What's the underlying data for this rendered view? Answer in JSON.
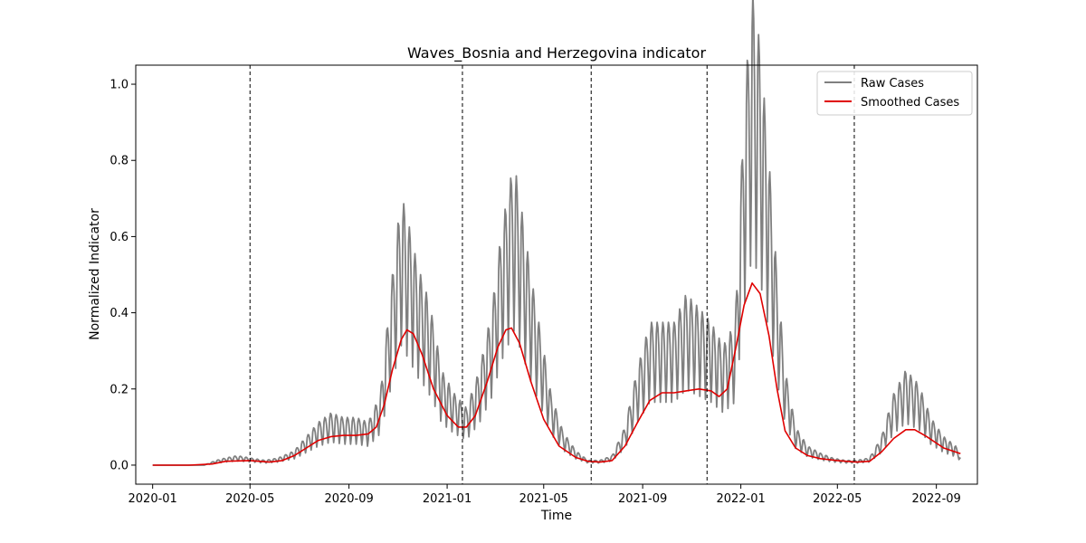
{
  "chart_data": {
    "type": "line",
    "title": "Waves_Bosnia and Herzegovina indicator",
    "xlabel": "Time",
    "ylabel": "Normalized Indicator",
    "x_range": [
      "2019-12-11",
      "2022-10-22"
    ],
    "ylim": [
      -0.05,
      1.05
    ],
    "x_ticks": [
      "2020-01",
      "2020-05",
      "2020-09",
      "2021-01",
      "2021-05",
      "2021-09",
      "2022-01",
      "2022-05",
      "2022-09"
    ],
    "y_ticks": [
      "0.0",
      "0.2",
      "0.4",
      "0.6",
      "0.8",
      "1.0"
    ],
    "grid": false,
    "legend_position": "top-right",
    "series": [
      {
        "name": "Raw Cases",
        "color": "#808080",
        "points": [
          [
            "2020-01-01",
            0.0
          ],
          [
            "2020-03-05",
            0.0
          ],
          [
            "2020-03-20",
            0.01
          ],
          [
            "2020-04-01",
            0.015
          ],
          [
            "2020-04-15",
            0.02
          ],
          [
            "2020-05-01",
            0.015
          ],
          [
            "2020-05-20",
            0.01
          ],
          [
            "2020-06-05",
            0.015
          ],
          [
            "2020-06-25",
            0.03
          ],
          [
            "2020-07-10",
            0.06
          ],
          [
            "2020-07-25",
            0.09
          ],
          [
            "2020-08-10",
            0.11
          ],
          [
            "2020-08-25",
            0.1
          ],
          [
            "2020-09-10",
            0.1
          ],
          [
            "2020-09-25",
            0.09
          ],
          [
            "2020-10-10",
            0.15
          ],
          [
            "2020-10-25",
            0.4
          ],
          [
            "2020-11-05",
            0.57
          ],
          [
            "2020-11-15",
            0.5
          ],
          [
            "2020-11-25",
            0.42
          ],
          [
            "2020-12-05",
            0.37
          ],
          [
            "2020-12-15",
            0.3
          ],
          [
            "2020-12-25",
            0.2
          ],
          [
            "2021-01-10",
            0.15
          ],
          [
            "2021-01-25",
            0.12
          ],
          [
            "2021-02-10",
            0.2
          ],
          [
            "2021-02-25",
            0.32
          ],
          [
            "2021-03-10",
            0.5
          ],
          [
            "2021-03-25",
            0.64
          ],
          [
            "2021-04-05",
            0.52
          ],
          [
            "2021-04-15",
            0.4
          ],
          [
            "2021-04-25",
            0.3
          ],
          [
            "2021-05-10",
            0.15
          ],
          [
            "2021-05-25",
            0.07
          ],
          [
            "2021-06-10",
            0.03
          ],
          [
            "2021-06-25",
            0.01
          ],
          [
            "2021-07-10",
            0.01
          ],
          [
            "2021-07-25",
            0.02
          ],
          [
            "2021-08-10",
            0.08
          ],
          [
            "2021-08-25",
            0.2
          ],
          [
            "2021-09-10",
            0.3
          ],
          [
            "2021-09-25",
            0.3
          ],
          [
            "2021-10-10",
            0.3
          ],
          [
            "2021-10-25",
            0.36
          ],
          [
            "2021-11-10",
            0.33
          ],
          [
            "2021-11-25",
            0.3
          ],
          [
            "2021-12-10",
            0.25
          ],
          [
            "2021-12-25",
            0.3
          ],
          [
            "2022-01-05",
            0.75
          ],
          [
            "2022-01-15",
            1.0
          ],
          [
            "2022-01-25",
            0.88
          ],
          [
            "2022-02-05",
            0.64
          ],
          [
            "2022-02-15",
            0.4
          ],
          [
            "2022-02-25",
            0.2
          ],
          [
            "2022-03-10",
            0.08
          ],
          [
            "2022-03-25",
            0.04
          ],
          [
            "2022-04-10",
            0.025
          ],
          [
            "2022-04-25",
            0.015
          ],
          [
            "2022-05-10",
            0.01
          ],
          [
            "2022-05-25",
            0.01
          ],
          [
            "2022-06-10",
            0.015
          ],
          [
            "2022-06-25",
            0.06
          ],
          [
            "2022-07-10",
            0.15
          ],
          [
            "2022-07-25",
            0.2
          ],
          [
            "2022-08-10",
            0.17
          ],
          [
            "2022-08-25",
            0.1
          ],
          [
            "2022-09-10",
            0.06
          ],
          [
            "2022-09-25",
            0.04
          ],
          [
            "2022-10-01",
            0.02
          ]
        ]
      },
      {
        "name": "Smoothed Cases",
        "color": "#e00000",
        "points": [
          [
            "2020-01-01",
            0.0
          ],
          [
            "2020-02-15",
            0.0
          ],
          [
            "2020-03-15",
            0.003
          ],
          [
            "2020-04-01",
            0.01
          ],
          [
            "2020-05-01",
            0.012
          ],
          [
            "2020-05-25",
            0.008
          ],
          [
            "2020-06-10",
            0.012
          ],
          [
            "2020-06-25",
            0.025
          ],
          [
            "2020-07-10",
            0.045
          ],
          [
            "2020-07-25",
            0.065
          ],
          [
            "2020-08-10",
            0.075
          ],
          [
            "2020-08-25",
            0.078
          ],
          [
            "2020-09-10",
            0.078
          ],
          [
            "2020-09-25",
            0.082
          ],
          [
            "2020-10-05",
            0.1
          ],
          [
            "2020-10-15",
            0.16
          ],
          [
            "2020-10-25",
            0.25
          ],
          [
            "2020-11-05",
            0.33
          ],
          [
            "2020-11-12",
            0.355
          ],
          [
            "2020-11-20",
            0.345
          ],
          [
            "2020-12-01",
            0.29
          ],
          [
            "2020-12-15",
            0.2
          ],
          [
            "2021-01-01",
            0.13
          ],
          [
            "2021-01-15",
            0.1
          ],
          [
            "2021-01-25",
            0.1
          ],
          [
            "2021-02-05",
            0.13
          ],
          [
            "2021-02-20",
            0.22
          ],
          [
            "2021-03-05",
            0.31
          ],
          [
            "2021-03-15",
            0.355
          ],
          [
            "2021-03-22",
            0.36
          ],
          [
            "2021-04-01",
            0.32
          ],
          [
            "2021-04-15",
            0.22
          ],
          [
            "2021-05-01",
            0.12
          ],
          [
            "2021-05-20",
            0.05
          ],
          [
            "2021-06-10",
            0.02
          ],
          [
            "2021-06-25",
            0.01
          ],
          [
            "2021-07-10",
            0.008
          ],
          [
            "2021-07-25",
            0.012
          ],
          [
            "2021-08-10",
            0.05
          ],
          [
            "2021-08-25",
            0.11
          ],
          [
            "2021-09-10",
            0.17
          ],
          [
            "2021-09-25",
            0.19
          ],
          [
            "2021-10-10",
            0.19
          ],
          [
            "2021-10-25",
            0.195
          ],
          [
            "2021-11-10",
            0.2
          ],
          [
            "2021-11-25",
            0.195
          ],
          [
            "2021-12-05",
            0.18
          ],
          [
            "2021-12-15",
            0.2
          ],
          [
            "2021-12-25",
            0.3
          ],
          [
            "2022-01-05",
            0.42
          ],
          [
            "2022-01-15",
            0.478
          ],
          [
            "2022-01-25",
            0.45
          ],
          [
            "2022-02-05",
            0.34
          ],
          [
            "2022-02-15",
            0.2
          ],
          [
            "2022-02-25",
            0.09
          ],
          [
            "2022-03-10",
            0.045
          ],
          [
            "2022-03-25",
            0.025
          ],
          [
            "2022-04-10",
            0.017
          ],
          [
            "2022-05-01",
            0.012
          ],
          [
            "2022-05-25",
            0.008
          ],
          [
            "2022-06-10",
            0.01
          ],
          [
            "2022-06-25",
            0.035
          ],
          [
            "2022-07-10",
            0.07
          ],
          [
            "2022-07-25",
            0.093
          ],
          [
            "2022-08-05",
            0.093
          ],
          [
            "2022-08-20",
            0.075
          ],
          [
            "2022-09-10",
            0.045
          ],
          [
            "2022-10-01",
            0.03
          ]
        ]
      }
    ],
    "wave_boundaries": [
      "2020-05-01",
      "2021-01-20",
      "2021-06-29",
      "2021-11-20",
      "2022-05-22"
    ]
  }
}
